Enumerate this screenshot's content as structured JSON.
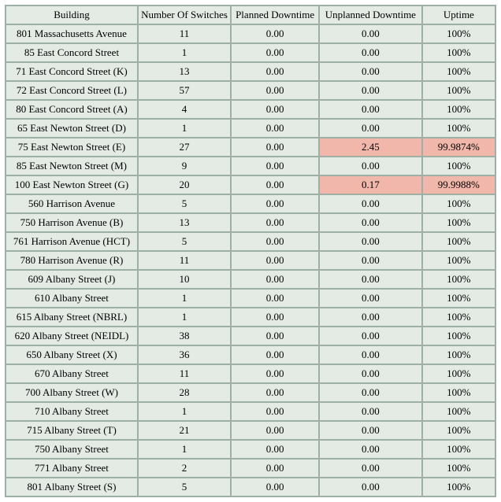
{
  "colors": {
    "cell_bg": "#e4ebe5",
    "border": "#9eb0a5",
    "highlight_bg": "#f2b7ab",
    "text": "#000000"
  },
  "table": {
    "type": "table",
    "columns": [
      "Building",
      "Number Of Switches",
      "Planned Downtime",
      "Unplanned Downtime",
      "Uptime"
    ],
    "column_widths_pct": [
      27,
      19,
      18,
      21,
      15
    ],
    "rows": [
      {
        "cells": [
          "801 Massachusetts Avenue",
          "11",
          "0.00",
          "0.00",
          "100%"
        ],
        "hl": []
      },
      {
        "cells": [
          "85 East Concord Street",
          "1",
          "0.00",
          "0.00",
          "100%"
        ],
        "hl": []
      },
      {
        "cells": [
          "71 East Concord Street (K)",
          "13",
          "0.00",
          "0.00",
          "100%"
        ],
        "hl": []
      },
      {
        "cells": [
          "72 East Concord Street (L)",
          "57",
          "0.00",
          "0.00",
          "100%"
        ],
        "hl": []
      },
      {
        "cells": [
          "80 East Concord Street (A)",
          "4",
          "0.00",
          "0.00",
          "100%"
        ],
        "hl": []
      },
      {
        "cells": [
          "65 East Newton Street (D)",
          "1",
          "0.00",
          "0.00",
          "100%"
        ],
        "hl": []
      },
      {
        "cells": [
          "75 East Newton Street (E)",
          "27",
          "0.00",
          "2.45",
          "99.9874%"
        ],
        "hl": [
          3,
          4
        ]
      },
      {
        "cells": [
          "85 East Newton Street (M)",
          "9",
          "0.00",
          "0.00",
          "100%"
        ],
        "hl": []
      },
      {
        "cells": [
          "100 East Newton Street (G)",
          "20",
          "0.00",
          "0.17",
          "99.9988%"
        ],
        "hl": [
          3,
          4
        ]
      },
      {
        "cells": [
          "560 Harrison Avenue",
          "5",
          "0.00",
          "0.00",
          "100%"
        ],
        "hl": []
      },
      {
        "cells": [
          "750 Harrison Avenue (B)",
          "13",
          "0.00",
          "0.00",
          "100%"
        ],
        "hl": []
      },
      {
        "cells": [
          "761 Harrison Avenue (HCT)",
          "5",
          "0.00",
          "0.00",
          "100%"
        ],
        "hl": []
      },
      {
        "cells": [
          "780 Harrison Avenue (R)",
          "11",
          "0.00",
          "0.00",
          "100%"
        ],
        "hl": []
      },
      {
        "cells": [
          "609 Albany Street (J)",
          "10",
          "0.00",
          "0.00",
          "100%"
        ],
        "hl": []
      },
      {
        "cells": [
          "610 Albany Street",
          "1",
          "0.00",
          "0.00",
          "100%"
        ],
        "hl": []
      },
      {
        "cells": [
          "615 Albany Street (NBRL)",
          "1",
          "0.00",
          "0.00",
          "100%"
        ],
        "hl": []
      },
      {
        "cells": [
          "620 Albany Street (NEIDL)",
          "38",
          "0.00",
          "0.00",
          "100%"
        ],
        "hl": []
      },
      {
        "cells": [
          "650 Albany Street (X)",
          "36",
          "0.00",
          "0.00",
          "100%"
        ],
        "hl": []
      },
      {
        "cells": [
          "670 Albany Street",
          "11",
          "0.00",
          "0.00",
          "100%"
        ],
        "hl": []
      },
      {
        "cells": [
          "700 Albany Street (W)",
          "28",
          "0.00",
          "0.00",
          "100%"
        ],
        "hl": []
      },
      {
        "cells": [
          "710 Albany Street",
          "1",
          "0.00",
          "0.00",
          "100%"
        ],
        "hl": []
      },
      {
        "cells": [
          "715 Albany Street (T)",
          "21",
          "0.00",
          "0.00",
          "100%"
        ],
        "hl": []
      },
      {
        "cells": [
          "750 Albany Street",
          "1",
          "0.00",
          "0.00",
          "100%"
        ],
        "hl": []
      },
      {
        "cells": [
          "771 Albany Street",
          "2",
          "0.00",
          "0.00",
          "100%"
        ],
        "hl": []
      },
      {
        "cells": [
          "801 Albany Street (S)",
          "5",
          "0.00",
          "0.00",
          "100%"
        ],
        "hl": []
      }
    ]
  }
}
